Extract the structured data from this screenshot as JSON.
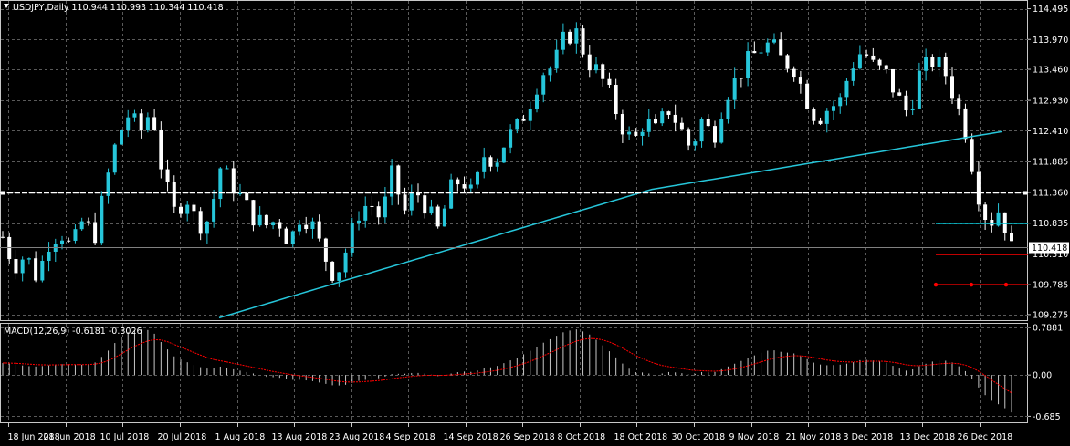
{
  "chart_data": {
    "type": "candlestick",
    "symbol_label": "USDJPY,Daily",
    "ohlc_label": "110.944 110.993 110.344 110.418",
    "price_ticks": [
      "114.495",
      "113.970",
      "113.460",
      "112.930",
      "112.410",
      "111.885",
      "111.360",
      "110.835",
      "110.310",
      "109.785",
      "109.275"
    ],
    "price_range": [
      109.18,
      114.55
    ],
    "current_price": 110.418,
    "current_price_label": "110.418",
    "horizontal_line": 111.36,
    "support_lines": [
      {
        "price": 110.3,
        "color": "#ff0000"
      },
      {
        "price": 109.785,
        "color": "#ff0000"
      }
    ],
    "resistance_segment": {
      "price": 110.83,
      "color": "#00c0d0"
    },
    "date_labels": [
      "18 Jun 2018",
      "28 Jun 2018",
      "10 Jul 2018",
      "20 Jul 2018",
      "1 Aug 2018",
      "13 Aug 2018",
      "23 Aug 2018",
      "4 Sep 2018",
      "14 Sep 2018",
      "26 Sep 2018",
      "8 Oct 2018",
      "18 Oct 2018",
      "30 Oct 2018",
      "9 Nov 2018",
      "21 Nov 2018",
      "3 Dec 2018",
      "13 Dec 2018",
      "26 Dec 2018"
    ],
    "close_path": [
      110.6,
      110.1,
      110.3,
      109.9,
      110.5,
      110.7,
      110.4,
      110.9,
      110.6,
      111.5,
      112.3,
      112.7,
      112.4,
      112.8,
      111.6,
      111.0,
      111.3,
      110.8,
      110.9,
      111.8,
      111.5,
      111.2,
      110.9,
      110.8,
      110.9,
      110.5,
      111.0,
      110.8,
      110.3,
      109.9,
      110.4,
      111.0,
      111.2,
      110.9,
      111.7,
      111.0,
      111.4,
      111.1,
      110.7,
      111.4,
      111.6,
      111.3,
      112.0,
      111.9,
      112.3,
      112.5,
      112.9,
      113.4,
      113.5,
      114.0,
      114.1,
      113.6,
      113.4,
      113.0,
      112.5,
      112.2,
      112.6,
      112.4,
      112.8,
      112.5,
      112.1,
      112.6,
      112.3,
      113.0,
      113.3,
      113.6,
      113.8,
      113.9,
      113.6,
      113.5,
      113.0,
      112.6,
      112.8,
      112.9,
      113.5,
      113.8,
      113.5,
      113.4,
      113.0,
      112.7,
      113.4,
      113.6,
      113.5,
      113.0,
      112.4,
      111.4,
      110.8,
      111.1,
      110.4
    ],
    "moving_average_levels": {
      "start": 109.22,
      "end": 112.41
    },
    "macd": {
      "label": "MACD(12,26,9) -0.6181 -0.3026",
      "ticks": [
        "0.7881",
        "0.00",
        "-0.685"
      ],
      "range": [
        -0.8,
        0.85
      ],
      "histogram_envelope": [
        0.2,
        0.18,
        0.15,
        0.14,
        0.16,
        0.18,
        0.18,
        0.17,
        0.2,
        0.36,
        0.58,
        0.72,
        0.76,
        0.74,
        0.5,
        0.3,
        0.22,
        0.14,
        0.1,
        0.14,
        0.1,
        0.06,
        0.02,
        -0.03,
        -0.04,
        -0.08,
        -0.08,
        -0.1,
        -0.14,
        -0.18,
        -0.16,
        -0.1,
        -0.07,
        -0.05,
        0.02,
        0.02,
        0.04,
        0.02,
        -0.02,
        0.02,
        0.06,
        0.05,
        0.11,
        0.14,
        0.22,
        0.3,
        0.4,
        0.52,
        0.62,
        0.72,
        0.76,
        0.7,
        0.55,
        0.38,
        0.2,
        0.05,
        0.04,
        0.0,
        0.05,
        0.04,
        0.0,
        0.05,
        0.04,
        0.12,
        0.2,
        0.28,
        0.36,
        0.42,
        0.38,
        0.36,
        0.28,
        0.18,
        0.16,
        0.17,
        0.2,
        0.26,
        0.24,
        0.21,
        0.12,
        0.06,
        0.15,
        0.22,
        0.25,
        0.2,
        0.06,
        -0.18,
        -0.4,
        -0.5,
        -0.62
      ],
      "signal_color": "#ff0000"
    }
  }
}
